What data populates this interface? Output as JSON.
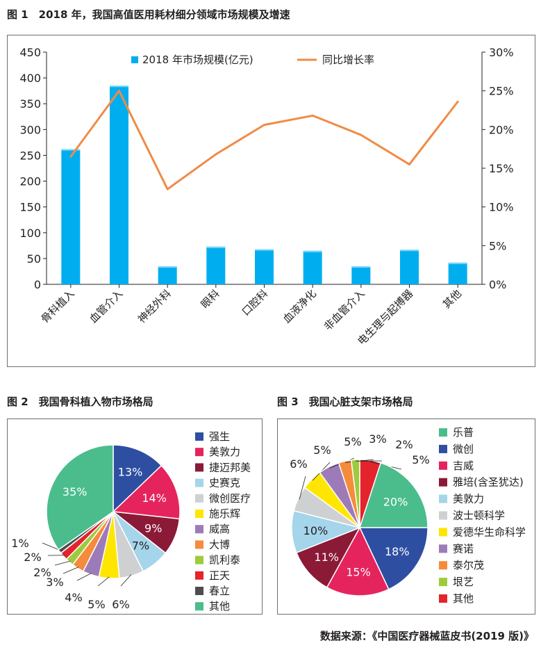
{
  "fig1": {
    "title": "图 1　2018 年，我国高值医用耗材细分领域市场规模及增速",
    "legend_bar": "2018 年市场规模(亿元)",
    "legend_line": "同比增长率",
    "colors": {
      "bar": "#00aeef",
      "line": "#f08b45"
    }
  },
  "fig2": {
    "title": "图 2　我国骨科植入物市场格局",
    "colors": [
      "#2e4ea1",
      "#e5245e",
      "#8b1a37",
      "#a5d5ea",
      "#cfd0d2",
      "#ffe600",
      "#9d7bb8",
      "#f58b3c",
      "#9ecb3c",
      "#e4232d",
      "#4d4d4f",
      "#4bbd8c"
    ]
  },
  "fig3": {
    "title": "图 3　我国心脏支架市场格局",
    "colors": [
      "#4bbd8c",
      "#2e4ea1",
      "#e5245e",
      "#8b1a37",
      "#a5d5ea",
      "#cfd0d2",
      "#ffe600",
      "#9d7bb8",
      "#f58b3c",
      "#9ecb3c",
      "#e4232d"
    ]
  },
  "source": "数据来源：《中国医疗器械蓝皮书(2019 版)》",
  "chart_data": [
    {
      "type": "bar",
      "categories": [
        "骨科植入",
        "血管介入",
        "神经外科",
        "眼科",
        "口腔科",
        "血液净化",
        "非血管介入",
        "电生理与起搏器",
        "其他"
      ],
      "series": [
        {
          "name": "2018 年市场规模(亿元)",
          "values": [
            262,
            385,
            35,
            73,
            68,
            65,
            35,
            67,
            42
          ],
          "axis": "left"
        },
        {
          "name": "同比增长率",
          "type": "line",
          "values": [
            16.5,
            25.0,
            12.3,
            16.8,
            20.6,
            21.8,
            19.3,
            15.5,
            23.6
          ],
          "axis": "right"
        }
      ],
      "y_left": {
        "range": [
          0,
          450
        ],
        "ticks": [
          "0",
          "50",
          "100",
          "150",
          "200",
          "250",
          "300",
          "350",
          "400",
          "450"
        ]
      },
      "y_right": {
        "range": [
          0,
          30
        ],
        "ticks": [
          "0%",
          "5%",
          "10%",
          "15%",
          "20%",
          "25%",
          "30%"
        ]
      },
      "grid": false,
      "legend_placement": "top"
    },
    {
      "type": "pie",
      "labels": [
        "强生",
        "美敦力",
        "捷迈邦美",
        "史赛克",
        "微创医疗",
        "施乐辉",
        "威高",
        "大博",
        "凯利泰",
        "正天",
        "春立",
        "其他"
      ],
      "values": [
        13,
        14,
        9,
        7,
        6,
        5,
        4,
        3,
        2,
        2,
        1,
        35
      ],
      "value_labels": [
        "13%",
        "14%",
        "9%",
        "7%",
        "6%",
        "5%",
        "4%",
        "3%",
        "2%",
        "2%",
        "1%",
        "35%"
      ],
      "legend_placement": "right"
    },
    {
      "type": "pie",
      "labels": [
        "乐普",
        "微创",
        "吉威",
        "雅培(含圣犹达)",
        "美敦力",
        "波士顿科学",
        "爱德华生命科学",
        "赛诺",
        "泰尔茂",
        "垠艺",
        "其他"
      ],
      "values": [
        20,
        18,
        15,
        11,
        10,
        6,
        5,
        5,
        3,
        2,
        5
      ],
      "value_labels": [
        "20%",
        "18%",
        "15%",
        "11%",
        "10%",
        "6%",
        "5%",
        "5%",
        "3%",
        "2%",
        "5%"
      ],
      "legend_placement": "right"
    }
  ]
}
